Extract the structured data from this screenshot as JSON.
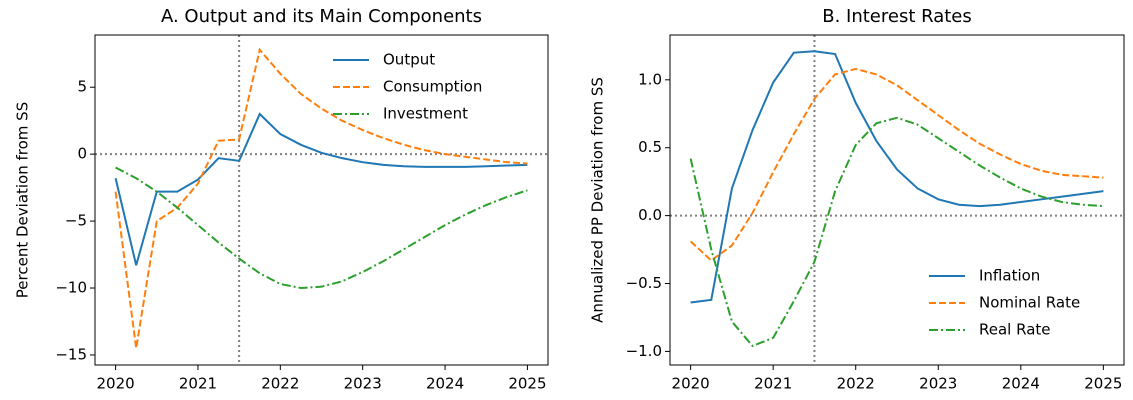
{
  "chart_data": [
    {
      "type": "line",
      "title": "A. Output and its Main Components",
      "ylabel": "Percent Deviation from SS",
      "x": [
        2020,
        2020.25,
        2020.5,
        2020.75,
        2021,
        2021.25,
        2021.5,
        2021.75,
        2022,
        2022.25,
        2022.5,
        2022.75,
        2023,
        2023.25,
        2023.5,
        2023.75,
        2024,
        2024.25,
        2024.5,
        2024.75,
        2025
      ],
      "series": [
        {
          "name": "Output",
          "color": "#1f77b4",
          "linestyle": "solid",
          "values": [
            -1.8,
            -8.3,
            -2.8,
            -2.8,
            -1.9,
            -0.3,
            -0.5,
            3.0,
            1.5,
            0.7,
            0.1,
            -0.3,
            -0.6,
            -0.8,
            -0.9,
            -0.95,
            -0.95,
            -0.95,
            -0.9,
            -0.85,
            -0.8
          ]
        },
        {
          "name": "Consumption",
          "color": "#ff7f0e",
          "linestyle": "dashed",
          "values": [
            -2.8,
            -14.5,
            -5.0,
            -4.0,
            -2.2,
            1.0,
            1.1,
            7.8,
            6.0,
            4.5,
            3.4,
            2.5,
            1.8,
            1.2,
            0.7,
            0.3,
            0.0,
            -0.2,
            -0.4,
            -0.6,
            -0.7
          ]
        },
        {
          "name": "Investment",
          "color": "#2ca02c",
          "linestyle": "dashdot",
          "values": [
            -1.0,
            -1.8,
            -2.8,
            -4.0,
            -5.3,
            -6.6,
            -7.8,
            -8.9,
            -9.7,
            -10.0,
            -9.9,
            -9.5,
            -8.8,
            -8.0,
            -7.1,
            -6.2,
            -5.3,
            -4.5,
            -3.8,
            -3.2,
            -2.7
          ]
        }
      ],
      "xlim": [
        2019.75,
        2025.25
      ],
      "xticks": [
        2020,
        2021,
        2022,
        2023,
        2024,
        2025
      ],
      "ylim": [
        -15.75,
        8.9
      ],
      "yticks": [
        {
          "value": -15,
          "label": "−15"
        },
        {
          "value": -10,
          "label": "−10"
        },
        {
          "value": -5,
          "label": "−5"
        },
        0,
        5
      ],
      "reference_lines": {
        "x": 2021.5,
        "y": 0
      },
      "legend": "upper right",
      "grid": false
    },
    {
      "type": "line",
      "title": "B. Interest Rates",
      "ylabel": "Annualized PP Deviation from SS",
      "x": [
        2020,
        2020.25,
        2020.5,
        2020.75,
        2021,
        2021.25,
        2021.5,
        2021.75,
        2022,
        2022.25,
        2022.5,
        2022.75,
        2023,
        2023.25,
        2023.5,
        2023.75,
        2024,
        2024.25,
        2024.5,
        2024.75,
        2025
      ],
      "series": [
        {
          "name": "Inflation",
          "color": "#1f77b4",
          "linestyle": "solid",
          "values": [
            -0.64,
            -0.62,
            0.2,
            0.63,
            0.98,
            1.2,
            1.21,
            1.19,
            0.83,
            0.55,
            0.34,
            0.2,
            0.12,
            0.08,
            0.07,
            0.08,
            0.1,
            0.12,
            0.14,
            0.16,
            0.18
          ]
        },
        {
          "name": "Nominal Rate",
          "color": "#ff7f0e",
          "linestyle": "dashed",
          "values": [
            -0.19,
            -0.33,
            -0.22,
            0.02,
            0.32,
            0.6,
            0.86,
            1.04,
            1.08,
            1.04,
            0.96,
            0.85,
            0.74,
            0.63,
            0.53,
            0.45,
            0.38,
            0.33,
            0.3,
            0.29,
            0.28
          ]
        },
        {
          "name": "Real Rate",
          "color": "#2ca02c",
          "linestyle": "dashdot",
          "values": [
            0.42,
            -0.25,
            -0.78,
            -0.96,
            -0.9,
            -0.63,
            -0.34,
            0.18,
            0.52,
            0.68,
            0.72,
            0.67,
            0.57,
            0.47,
            0.37,
            0.28,
            0.2,
            0.14,
            0.1,
            0.08,
            0.07
          ]
        }
      ],
      "xlim": [
        2019.75,
        2025.25
      ],
      "xticks": [
        2020,
        2021,
        2022,
        2023,
        2024,
        2025
      ],
      "ylim": [
        -1.1,
        1.33
      ],
      "yticks": [
        {
          "value": -1,
          "label": "−1.0"
        },
        {
          "value": -0.5,
          "label": "−0.5"
        },
        {
          "value": 0,
          "label": "0.0"
        },
        0.5,
        {
          "value": 1,
          "label": "1.0"
        }
      ],
      "reference_lines": {
        "x": 2021.5,
        "y": 0
      },
      "legend": "lower right",
      "grid": false
    }
  ]
}
